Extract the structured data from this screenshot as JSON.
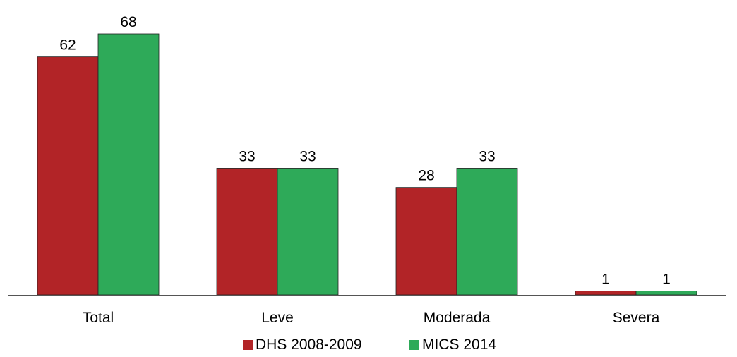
{
  "chart_data": {
    "type": "bar",
    "categories": [
      "Total",
      "Leve",
      "Moderada",
      "Severa"
    ],
    "series": [
      {
        "name": "DHS 2008-2009",
        "color": "#B22427",
        "values": [
          62,
          33,
          28,
          1
        ]
      },
      {
        "name": "MICS 2014",
        "color": "#2EAA59",
        "values": [
          68,
          33,
          33,
          1
        ]
      }
    ],
    "value_labels": [
      [
        "62",
        "33",
        "28",
        "1"
      ],
      [
        "68",
        "33",
        "33",
        "1"
      ]
    ],
    "ylim": [
      0,
      68
    ],
    "grid": false,
    "legend_position": "bottom-center",
    "y_axis_visible": false,
    "baseline_color": "#555555"
  }
}
